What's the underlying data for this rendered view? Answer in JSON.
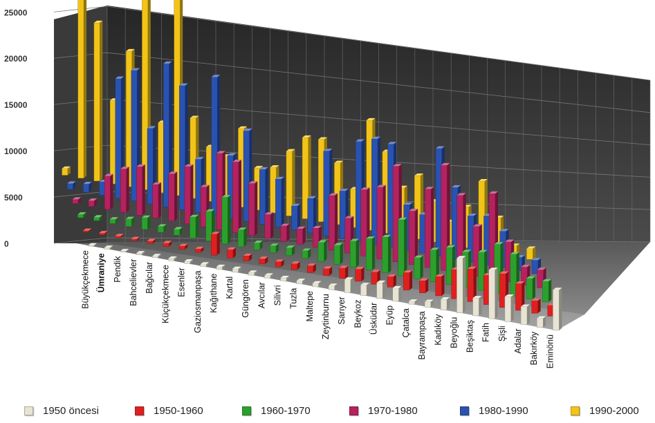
{
  "chart_data": {
    "type": "bar",
    "subtype": "3d-clustered-column",
    "ylim": [
      0,
      25000
    ],
    "yticks": [
      "0",
      "5000",
      "10000",
      "15000",
      "20000",
      "25000"
    ],
    "grid": true,
    "legend_position": "bottom",
    "categories": [
      "Büyükçekmece",
      "Ümraniye",
      "Pendik",
      "Bahcelievler",
      "Bağcılar",
      "Küçükçekmece",
      "Esenler",
      "Gaziosmanpaşa",
      "Kağıthane",
      "Kartal",
      "Güngören",
      "Avcılar",
      "Silivri",
      "Tuzla",
      "Maltepe",
      "Zeytinburnu",
      "Sarıyer",
      "Beykoz",
      "Üsküdar",
      "Eyüp",
      "Çatalca",
      "Bayrampaşa",
      "Kadıköy",
      "Beyoğlu",
      "Beşiktaş",
      "Fatih",
      "Şişli",
      "Adalar",
      "Bakırköy",
      "Eminönü"
    ],
    "highlight_category": "Ümraniye",
    "highlight_color": "#d32020",
    "series": [
      {
        "name": "1950 öncesi",
        "color": "#e8e4d4",
        "values": [
          100,
          150,
          100,
          200,
          200,
          250,
          250,
          250,
          300,
          400,
          300,
          300,
          350,
          350,
          400,
          450,
          1500,
          1200,
          1800,
          1500,
          300,
          600,
          1200,
          6200,
          2000,
          5500,
          2800,
          2000,
          1000,
          4500
        ]
      },
      {
        "name": "1950-1960",
        "color": "#e02020",
        "values": [
          150,
          200,
          200,
          200,
          300,
          400,
          400,
          400,
          2500,
          1000,
          600,
          600,
          600,
          700,
          800,
          800,
          1200,
          1400,
          1400,
          1200,
          2000,
          1400,
          2200,
          3300,
          3700,
          3300,
          3800,
          3000,
          1400,
          1200
        ]
      },
      {
        "name": "1960-1970",
        "color": "#2ca02c",
        "values": [
          400,
          400,
          500,
          900,
          1400,
          700,
          700,
          2500,
          3500,
          5500,
          2000,
          800,
          800,
          900,
          900,
          2200,
          2200,
          3000,
          3600,
          4100,
          6400,
          2400,
          3600,
          4200,
          4000,
          4300,
          5500,
          4700,
          2300,
          2300
        ]
      },
      {
        "name": "1970-1980",
        "color": "#b5225e",
        "values": [
          500,
          700,
          4000,
          5200,
          5800,
          4000,
          5600,
          6800,
          4700,
          9000,
          8300,
          6100,
          2800,
          1800,
          1800,
          2200,
          6300,
          4000,
          7600,
          8200,
          10900,
          6100,
          8900,
          11900,
          8800,
          5600,
          9600,
          4500,
          2000,
          2000
        ]
      },
      {
        "name": "1980-1990",
        "color": "#2a52b0",
        "values": [
          700,
          1000,
          1600,
          14300,
          15600,
          9000,
          17000,
          14700,
          6300,
          16300,
          7400,
          10600,
          6400,
          5600,
          2800,
          4000,
          9800,
          5500,
          11500,
          12100,
          11800,
          5200,
          4400,
          12200,
          8100,
          5200,
          5500,
          4100,
          1500,
          1500
        ]
      },
      {
        "name": "1990-2000",
        "color": "#f2c418",
        "values": [
          800,
          24800,
          19000,
          10000,
          16200,
          23000,
          8300,
          25000,
          9500,
          6400,
          5600,
          9200,
          4900,
          5300,
          7500,
          9400,
          9500,
          7100,
          4400,
          12600,
          9300,
          5500,
          7200,
          4600,
          2600,
          4600,
          7800,
          4000,
          1200,
          1200
        ]
      }
    ]
  }
}
